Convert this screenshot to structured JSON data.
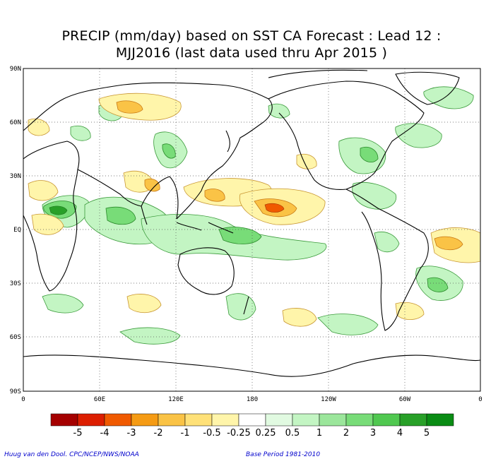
{
  "title_line1": "PRECIP (mm/day) based on SST CA Forecast : Lead 12 :",
  "title_line2": "MJJ2016 (last data used thru Apr 2015 )",
  "lat_labels": [
    "90N",
    "60N",
    "30N",
    "EQ",
    "30S",
    "60S",
    "90S"
  ],
  "lon_labels": [
    "0",
    "60E",
    "120E",
    "180",
    "120W",
    "60W",
    "0"
  ],
  "legend": {
    "labels": [
      "-5",
      "-4",
      "-3",
      "-2",
      "-1",
      "-0.5",
      "-0.25",
      "0.25",
      "0.5",
      "1",
      "2",
      "3",
      "4",
      "5"
    ],
    "colors": [
      "#a50000",
      "#dc1e00",
      "#f05a00",
      "#f59b14",
      "#fac346",
      "#ffe178",
      "#fff5aa",
      "#ffffff",
      "#e1fae1",
      "#c3f5c3",
      "#9be69b",
      "#78dc78",
      "#50c850",
      "#28a028",
      "#0a8c14"
    ]
  },
  "footer_left": "Huug van den Dool. CPC/NCEP/NWS/NOAA",
  "footer_right": "Base Period 1981-2010"
}
